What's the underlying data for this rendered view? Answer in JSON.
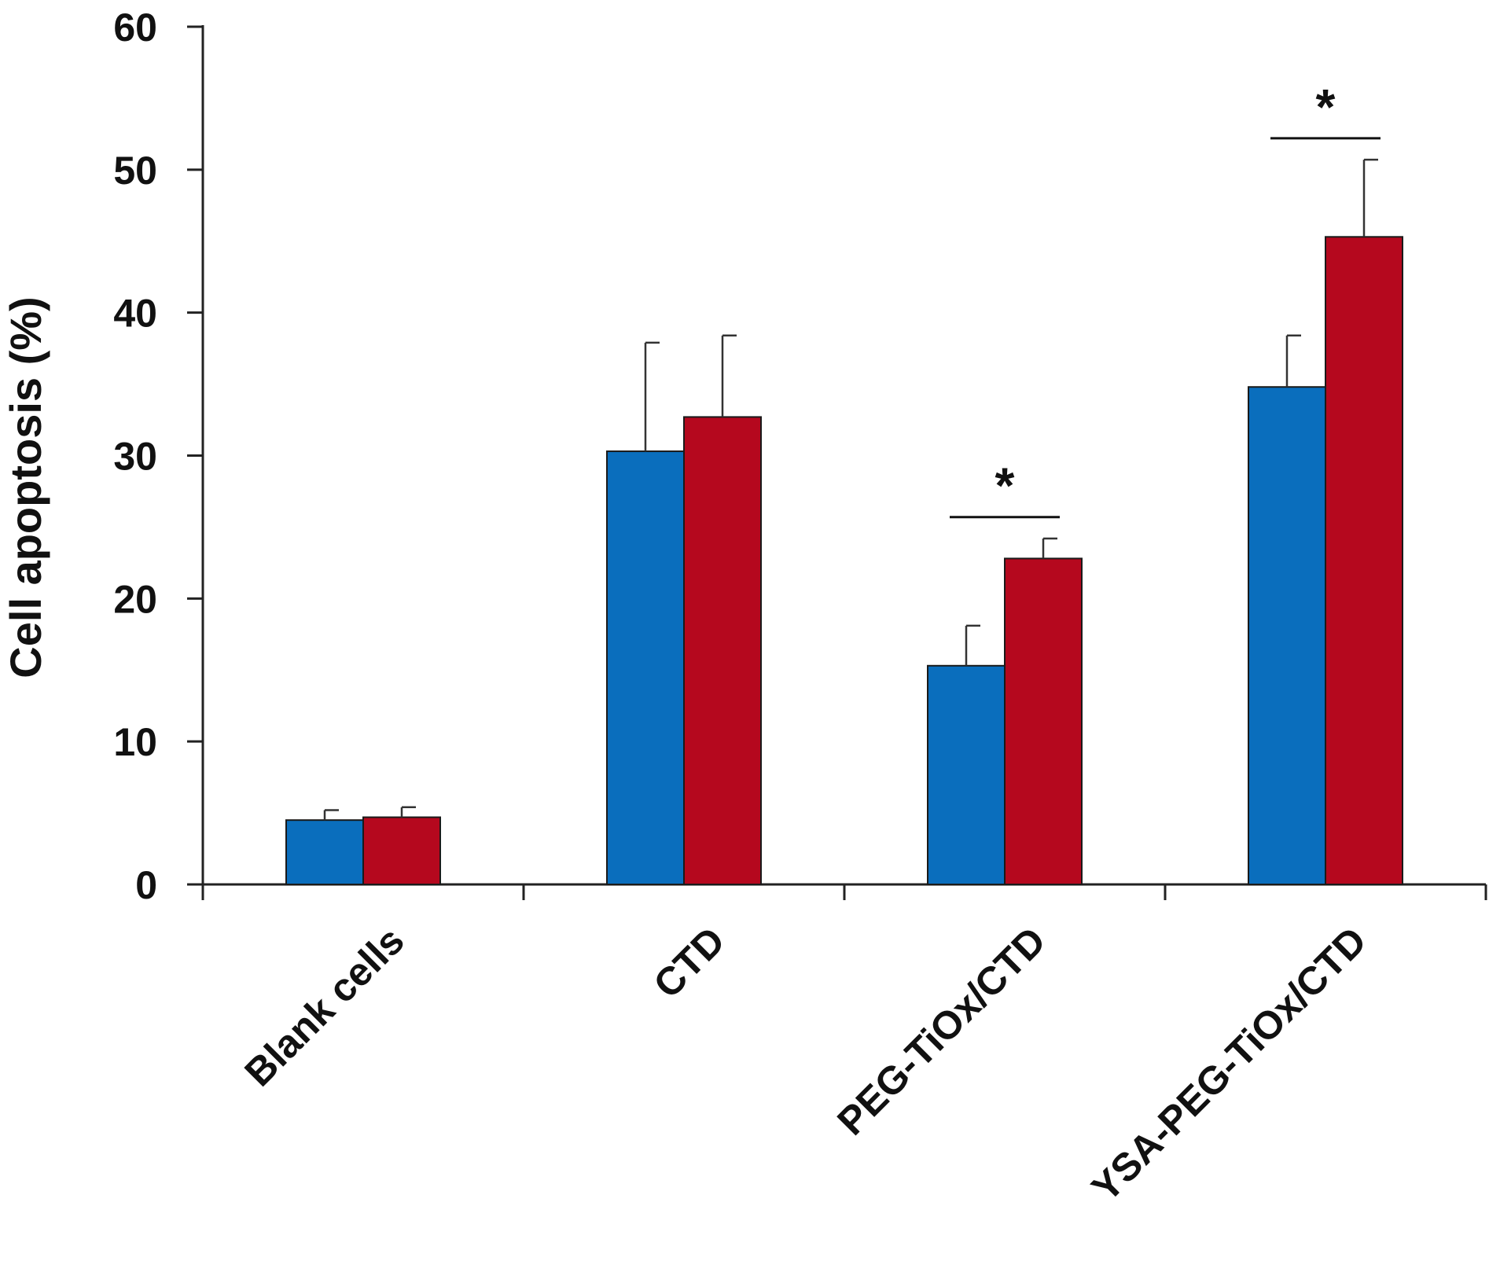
{
  "chart_data": {
    "type": "bar",
    "title": "",
    "xlabel": "",
    "ylabel": "Cell apoptosis (%)",
    "ylim": [
      0,
      60
    ],
    "yticks": [
      0,
      10,
      20,
      30,
      40,
      50,
      60
    ],
    "categories": [
      "Blank cells",
      "CTD",
      "PEG-TiOx/CTD",
      "YSA-PEG-TiOx/CTD"
    ],
    "series": [
      {
        "color": "#0a6ebd",
        "values": [
          4.5,
          30.3,
          15.3,
          34.8
        ],
        "errors": [
          0.7,
          7.6,
          2.8,
          3.6
        ]
      },
      {
        "color": "#b5081e",
        "values": [
          4.7,
          32.7,
          22.8,
          45.3
        ],
        "errors": [
          0.7,
          5.7,
          1.4,
          5.4
        ]
      }
    ],
    "significance": [
      {
        "category": "PEG-TiOx/CTD",
        "y": 25.7,
        "label": "*"
      },
      {
        "category": "YSA-PEG-TiOx/CTD",
        "y": 52.2,
        "label": "*"
      }
    ],
    "grid": false,
    "legend": "none"
  }
}
